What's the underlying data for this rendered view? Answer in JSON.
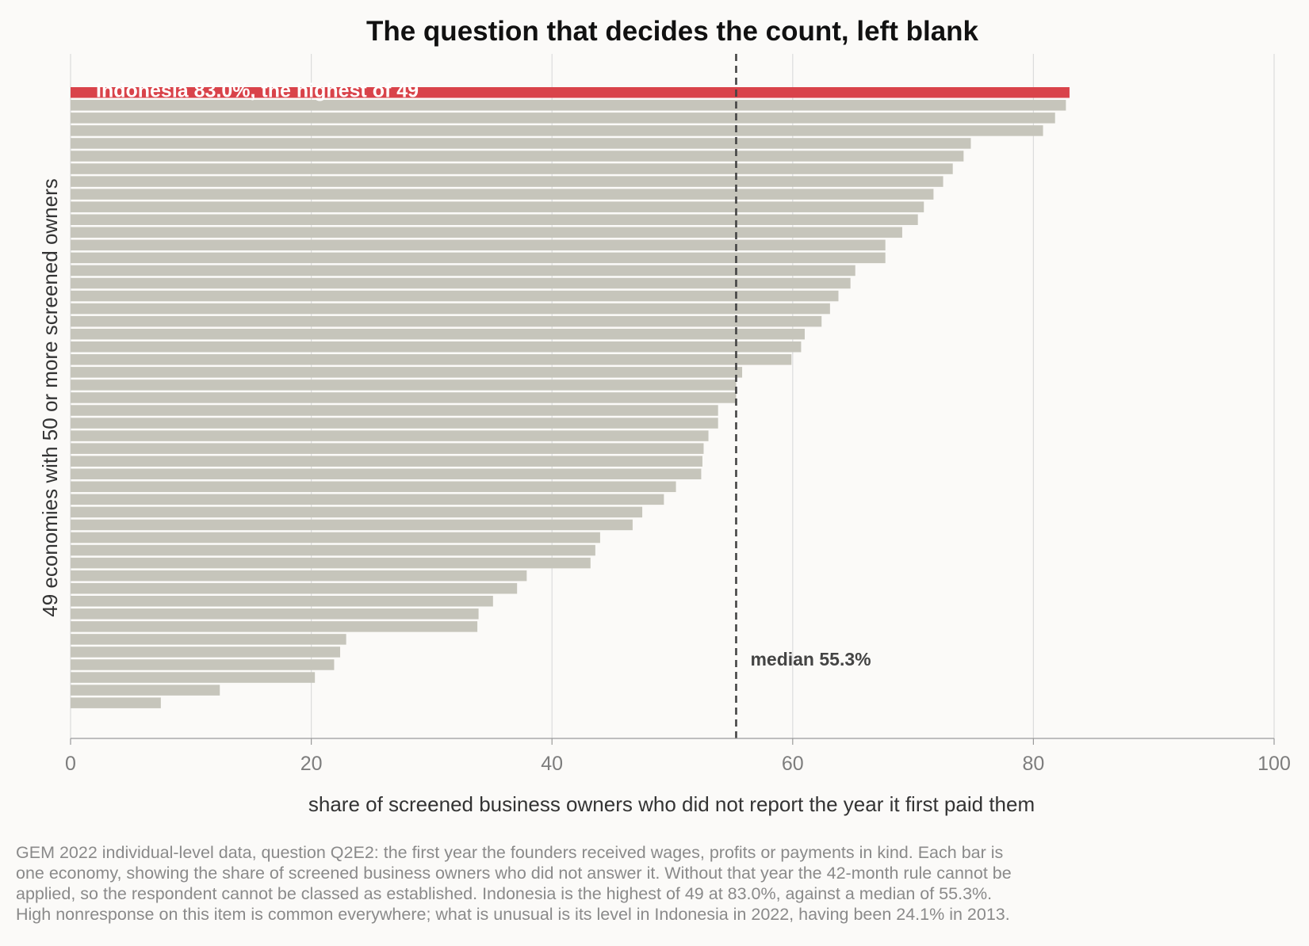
{
  "chart_data": {
    "type": "bar",
    "orientation": "horizontal",
    "title": "The question that decides the count, left blank",
    "xlabel": "share of screened business owners who did not report the year it first paid them",
    "ylabel": "49 economies with 50 or more screened owners",
    "xlim": [
      0,
      100
    ],
    "xticks": [
      0,
      20,
      40,
      60,
      80,
      100
    ],
    "grid": "vertical",
    "highlight": {
      "index": 0,
      "color": "#d9434a",
      "label": "Indonesia 83.0%, the highest of 49"
    },
    "bar_color": "#c6c5bb",
    "values": [
      83.0,
      82.7,
      81.8,
      80.8,
      74.8,
      74.2,
      73.3,
      72.5,
      71.7,
      70.9,
      70.4,
      69.1,
      67.7,
      67.7,
      65.2,
      64.8,
      63.8,
      63.1,
      62.4,
      61.0,
      60.7,
      59.9,
      55.8,
      55.3,
      55.3,
      53.8,
      53.8,
      53.0,
      52.6,
      52.5,
      52.4,
      50.3,
      49.3,
      47.5,
      46.7,
      44.0,
      43.6,
      43.2,
      37.9,
      37.1,
      35.1,
      33.9,
      33.8,
      22.9,
      22.4,
      21.9,
      20.3,
      12.4,
      7.5
    ],
    "reference_line": {
      "value": 55.3,
      "label": "median 55.3%",
      "style": "dashed",
      "color": "#444444"
    }
  },
  "footnote": [
    "GEM 2022 individual-level data, question Q2E2: the first year the founders received wages, profits or payments in kind. Each bar is",
    "one economy, showing the share of screened business owners who did not answer it. Without that year the 42-month rule cannot be",
    "applied, so the respondent cannot be classed as established. Indonesia is the highest of 49 at 83.0%, against a median of 55.3%.",
    "High nonresponse on this item is common everywhere; what is unusual is its level in Indonesia in 2022, having been 24.1% in 2013."
  ]
}
